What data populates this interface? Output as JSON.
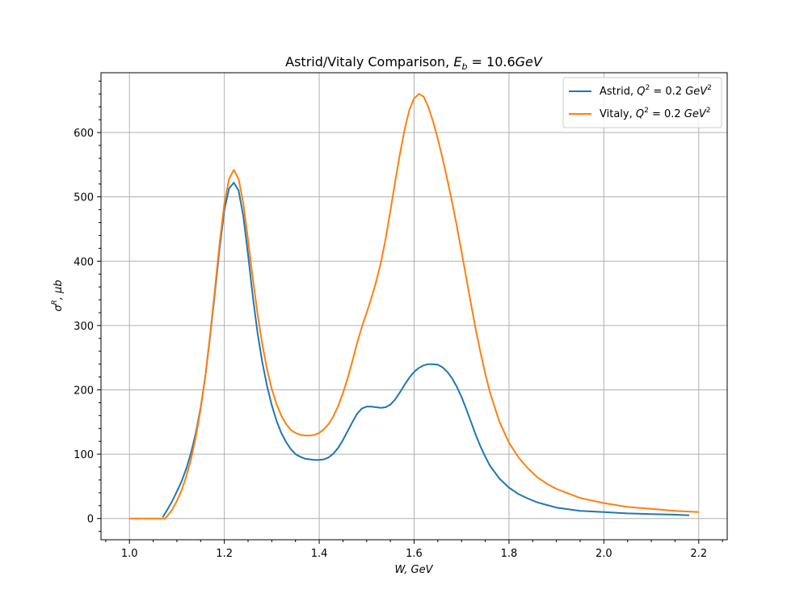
{
  "chart_data": {
    "type": "line",
    "title": "Astrid/Vitaly Comparison, E_b = 10.6GeV",
    "title_parts": {
      "main": "Astrid/Vitaly Comparison, ",
      "sym": "E",
      "sub": "b",
      "rest": " = 10.6",
      "unit": "GeV"
    },
    "xlabel": "W, GeV",
    "ylabel": "σ^R, μb",
    "xlim": [
      0.94,
      2.26
    ],
    "ylim": [
      -33,
      693
    ],
    "xticks": [
      1.0,
      1.2,
      1.4,
      1.6,
      1.8,
      2.0,
      2.2
    ],
    "yticks": [
      0,
      100,
      200,
      300,
      400,
      500,
      600
    ],
    "grid": true,
    "legend_position": "top-right",
    "series": [
      {
        "name": "Astrid, Q^2 = 0.2 GeV^2",
        "legend_parts": {
          "pre": "Astrid, ",
          "q": "Q",
          "sup": "2",
          "mid": " = 0.2 ",
          "unit": "GeV",
          "usup": "2"
        },
        "color": "#1f77b4",
        "points": [
          [
            1.07,
            2
          ],
          [
            1.08,
            14
          ],
          [
            1.09,
            27
          ],
          [
            1.1,
            42
          ],
          [
            1.11,
            58
          ],
          [
            1.12,
            78
          ],
          [
            1.13,
            103
          ],
          [
            1.14,
            133
          ],
          [
            1.15,
            172
          ],
          [
            1.16,
            222
          ],
          [
            1.17,
            283
          ],
          [
            1.18,
            350
          ],
          [
            1.19,
            420
          ],
          [
            1.2,
            480
          ],
          [
            1.21,
            513
          ],
          [
            1.22,
            522
          ],
          [
            1.23,
            510
          ],
          [
            1.24,
            470
          ],
          [
            1.25,
            410
          ],
          [
            1.26,
            345
          ],
          [
            1.27,
            288
          ],
          [
            1.28,
            243
          ],
          [
            1.29,
            206
          ],
          [
            1.3,
            176
          ],
          [
            1.31,
            152
          ],
          [
            1.32,
            133
          ],
          [
            1.33,
            119
          ],
          [
            1.34,
            108
          ],
          [
            1.35,
            100
          ],
          [
            1.36,
            96
          ],
          [
            1.37,
            93
          ],
          [
            1.38,
            92
          ],
          [
            1.39,
            91
          ],
          [
            1.4,
            91
          ],
          [
            1.41,
            92
          ],
          [
            1.42,
            95
          ],
          [
            1.43,
            101
          ],
          [
            1.44,
            110
          ],
          [
            1.45,
            122
          ],
          [
            1.46,
            136
          ],
          [
            1.47,
            150
          ],
          [
            1.48,
            163
          ],
          [
            1.49,
            171
          ],
          [
            1.5,
            174
          ],
          [
            1.51,
            174
          ],
          [
            1.52,
            173
          ],
          [
            1.53,
            172
          ],
          [
            1.54,
            173
          ],
          [
            1.55,
            177
          ],
          [
            1.56,
            185
          ],
          [
            1.57,
            196
          ],
          [
            1.58,
            208
          ],
          [
            1.59,
            219
          ],
          [
            1.6,
            228
          ],
          [
            1.61,
            234
          ],
          [
            1.62,
            238
          ],
          [
            1.63,
            240
          ],
          [
            1.64,
            240
          ],
          [
            1.65,
            239
          ],
          [
            1.66,
            235
          ],
          [
            1.67,
            228
          ],
          [
            1.68,
            218
          ],
          [
            1.69,
            205
          ],
          [
            1.7,
            189
          ],
          [
            1.71,
            170
          ],
          [
            1.72,
            150
          ],
          [
            1.73,
            130
          ],
          [
            1.74,
            112
          ],
          [
            1.75,
            96
          ],
          [
            1.76,
            82
          ],
          [
            1.78,
            62
          ],
          [
            1.8,
            48
          ],
          [
            1.82,
            38
          ],
          [
            1.84,
            31
          ],
          [
            1.86,
            25
          ],
          [
            1.88,
            21
          ],
          [
            1.9,
            17
          ],
          [
            1.95,
            12
          ],
          [
            2.0,
            10
          ],
          [
            2.05,
            8
          ],
          [
            2.1,
            7
          ],
          [
            2.15,
            6
          ],
          [
            2.18,
            5
          ]
        ]
      },
      {
        "name": "Vitaly, Q^2 = 0.2 GeV^2",
        "legend_parts": {
          "pre": "Vitaly, ",
          "q": "Q",
          "sup": "2",
          "mid": " = 0.2 ",
          "unit": "GeV",
          "usup": "2"
        },
        "color": "#ff7f0e",
        "points": [
          [
            1.0,
            0
          ],
          [
            1.02,
            0
          ],
          [
            1.04,
            0
          ],
          [
            1.06,
            0
          ],
          [
            1.075,
            0
          ],
          [
            1.08,
            4
          ],
          [
            1.09,
            14
          ],
          [
            1.1,
            27
          ],
          [
            1.11,
            44
          ],
          [
            1.12,
            66
          ],
          [
            1.13,
            93
          ],
          [
            1.14,
            127
          ],
          [
            1.15,
            170
          ],
          [
            1.16,
            222
          ],
          [
            1.17,
            285
          ],
          [
            1.18,
            355
          ],
          [
            1.19,
            428
          ],
          [
            1.2,
            490
          ],
          [
            1.21,
            528
          ],
          [
            1.22,
            542
          ],
          [
            1.23,
            528
          ],
          [
            1.24,
            490
          ],
          [
            1.25,
            433
          ],
          [
            1.26,
            373
          ],
          [
            1.27,
            318
          ],
          [
            1.28,
            271
          ],
          [
            1.29,
            232
          ],
          [
            1.3,
            201
          ],
          [
            1.31,
            178
          ],
          [
            1.32,
            160
          ],
          [
            1.33,
            147
          ],
          [
            1.34,
            138
          ],
          [
            1.35,
            133
          ],
          [
            1.36,
            130
          ],
          [
            1.37,
            129
          ],
          [
            1.38,
            129
          ],
          [
            1.39,
            130
          ],
          [
            1.4,
            133
          ],
          [
            1.41,
            139
          ],
          [
            1.42,
            147
          ],
          [
            1.43,
            159
          ],
          [
            1.44,
            175
          ],
          [
            1.45,
            195
          ],
          [
            1.46,
            218
          ],
          [
            1.47,
            245
          ],
          [
            1.48,
            273
          ],
          [
            1.49,
            298
          ],
          [
            1.5,
            320
          ],
          [
            1.51,
            343
          ],
          [
            1.52,
            368
          ],
          [
            1.53,
            398
          ],
          [
            1.54,
            435
          ],
          [
            1.55,
            478
          ],
          [
            1.56,
            523
          ],
          [
            1.57,
            566
          ],
          [
            1.58,
            605
          ],
          [
            1.59,
            635
          ],
          [
            1.6,
            653
          ],
          [
            1.61,
            660
          ],
          [
            1.62,
            656
          ],
          [
            1.63,
            640
          ],
          [
            1.64,
            617
          ],
          [
            1.65,
            590
          ],
          [
            1.66,
            560
          ],
          [
            1.67,
            527
          ],
          [
            1.68,
            492
          ],
          [
            1.69,
            455
          ],
          [
            1.7,
            415
          ],
          [
            1.71,
            374
          ],
          [
            1.72,
            333
          ],
          [
            1.73,
            294
          ],
          [
            1.74,
            258
          ],
          [
            1.75,
            225
          ],
          [
            1.76,
            196
          ],
          [
            1.78,
            150
          ],
          [
            1.8,
            118
          ],
          [
            1.82,
            95
          ],
          [
            1.84,
            78
          ],
          [
            1.86,
            64
          ],
          [
            1.88,
            54
          ],
          [
            1.9,
            46
          ],
          [
            1.95,
            32
          ],
          [
            2.0,
            24
          ],
          [
            2.05,
            18
          ],
          [
            2.1,
            15
          ],
          [
            2.15,
            12
          ],
          [
            2.2,
            10
          ]
        ]
      }
    ]
  }
}
